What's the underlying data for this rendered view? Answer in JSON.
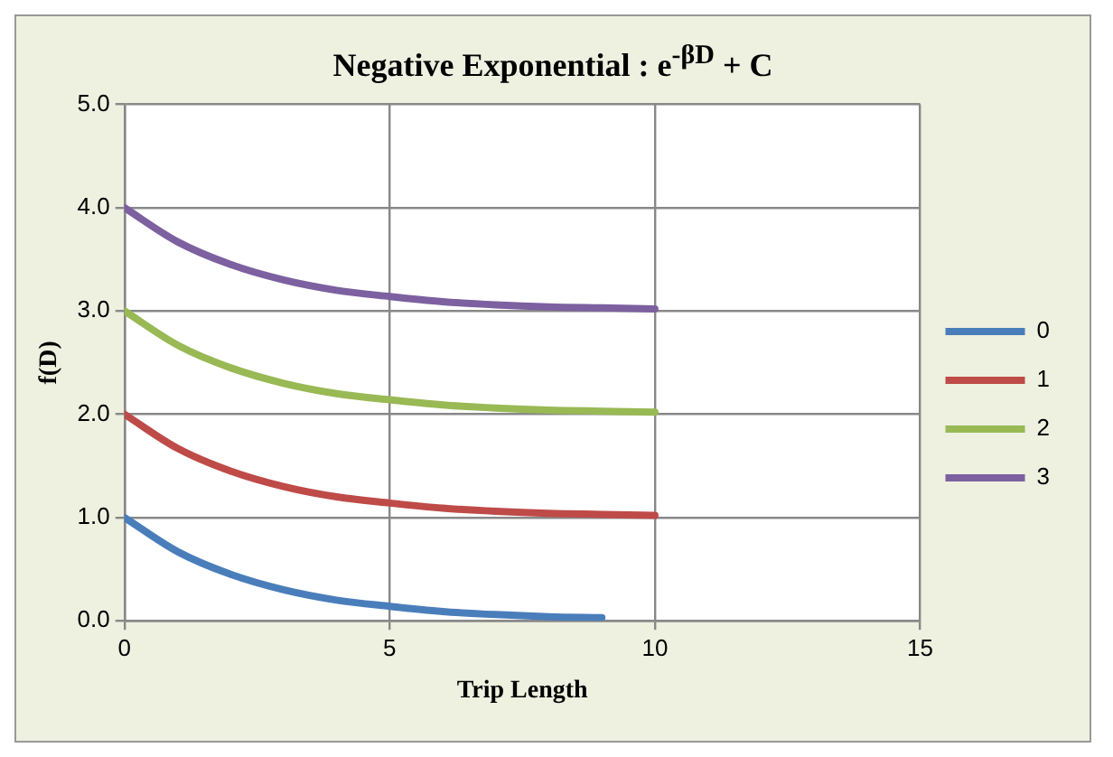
{
  "chart_data": {
    "type": "line",
    "title": "Negative Exponential : e$^{-βD}$ + C",
    "xlabel": "Trip Length",
    "ylabel": "f(D)",
    "x": [
      0,
      1,
      2,
      3,
      4,
      5,
      6,
      7,
      8,
      9,
      10
    ],
    "series": [
      {
        "name": "0",
        "color": "#4a7ebb",
        "values": [
          1.0,
          0.67,
          0.45,
          0.3,
          0.2,
          0.14,
          0.09,
          0.06,
          0.04,
          0.03,
          null
        ]
      },
      {
        "name": "1",
        "color": "#be4b48",
        "values": [
          2.0,
          1.67,
          1.45,
          1.3,
          1.2,
          1.14,
          1.09,
          1.06,
          1.04,
          1.03,
          1.02
        ]
      },
      {
        "name": "2",
        "color": "#98b954",
        "values": [
          3.0,
          2.67,
          2.45,
          2.3,
          2.2,
          2.14,
          2.09,
          2.06,
          2.04,
          2.03,
          2.02
        ]
      },
      {
        "name": "3",
        "color": "#7d60a0",
        "values": [
          4.0,
          3.67,
          3.45,
          3.3,
          3.2,
          3.14,
          3.09,
          3.06,
          3.04,
          3.03,
          3.02
        ]
      }
    ],
    "xlim": [
      0,
      15
    ],
    "xticks": [
      0,
      5,
      10,
      15
    ],
    "ylim": [
      0,
      5
    ],
    "yticks": [
      {
        "value": 0,
        "label": "0.0"
      },
      {
        "value": 1,
        "label": "1.0"
      },
      {
        "value": 2,
        "label": "2.0"
      },
      {
        "value": 3,
        "label": "3.0"
      },
      {
        "value": 4,
        "label": "4.0"
      },
      {
        "value": 5,
        "label": "5.0"
      }
    ],
    "grid": true,
    "legend": "right",
    "marker": "none",
    "line_style": "solid"
  }
}
